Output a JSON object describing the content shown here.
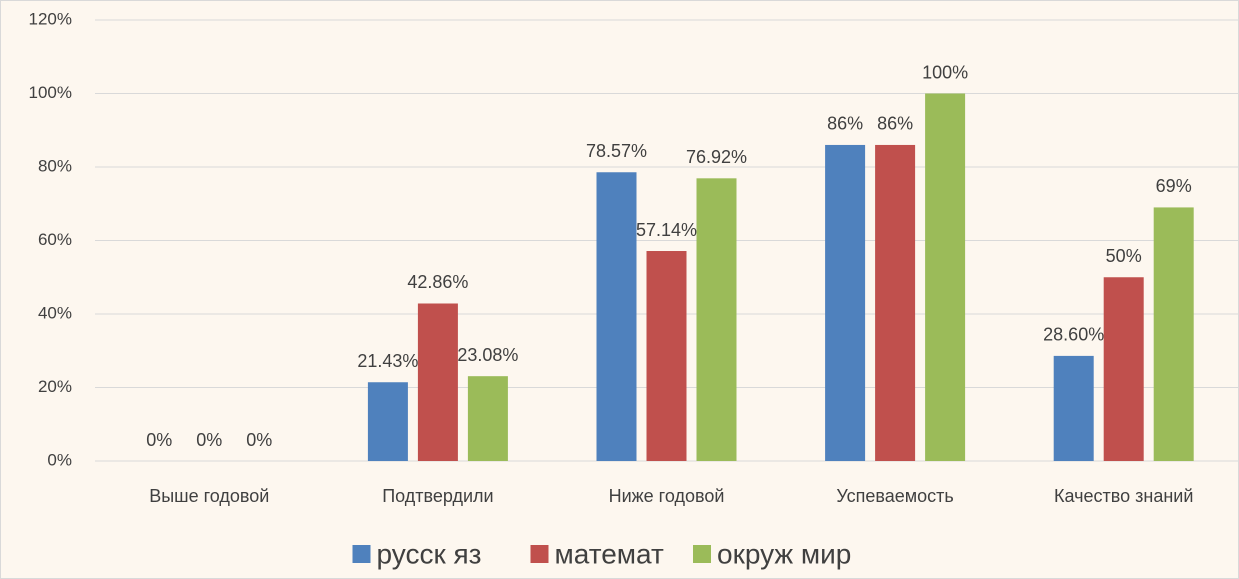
{
  "chart_data": {
    "type": "bar",
    "categories": [
      "Выше годовой",
      "Подтвердили",
      "Ниже годовой",
      "Успеваемость",
      "Качество знаний"
    ],
    "series": [
      {
        "name": "русск яз",
        "color": "#4f81bd",
        "values": [
          0,
          21.43,
          78.57,
          86,
          28.6
        ],
        "value_labels": [
          "0%",
          "21.43%",
          "78.57%",
          "86%",
          "28.60%"
        ]
      },
      {
        "name": "математ",
        "color": "#c0504d",
        "values": [
          0,
          42.86,
          57.14,
          86,
          50
        ],
        "value_labels": [
          "0%",
          "42.86%",
          "57.14%",
          "86%",
          "50%"
        ]
      },
      {
        "name": "окруж мир",
        "color": "#9bbb59",
        "values": [
          0,
          23.08,
          76.92,
          100,
          69
        ],
        "value_labels": [
          "0%",
          "23.08%",
          "76.92%",
          "100%",
          "69%"
        ]
      }
    ],
    "ylim": [
      0,
      120
    ],
    "yticks": [
      {
        "value": 0,
        "label": "0%"
      },
      {
        "value": 20,
        "label": "20%"
      },
      {
        "value": 40,
        "label": "40%"
      },
      {
        "value": 60,
        "label": "60%"
      },
      {
        "value": 80,
        "label": "80%"
      },
      {
        "value": 100,
        "label": "100%"
      },
      {
        "value": 120,
        "label": "120%"
      }
    ],
    "grid": true,
    "legend": "bottom"
  }
}
